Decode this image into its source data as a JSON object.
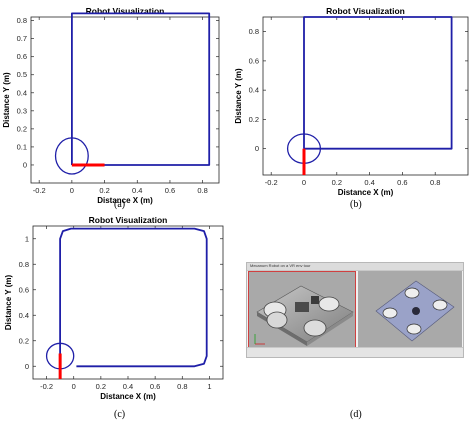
{
  "chart_data": [
    {
      "type": "line",
      "panel_label": "(a)",
      "title": "Robot Visualization",
      "xlabel": "Distance X (m)",
      "ylabel": "Distance Y (m)",
      "xlim": [
        -0.25,
        0.9
      ],
      "ylim": [
        -0.1,
        0.82
      ],
      "xticks": [
        -0.2,
        0,
        0.2,
        0.4,
        0.6,
        0.8
      ],
      "yticks": [
        0,
        0.1,
        0.2,
        0.3,
        0.4,
        0.5,
        0.6,
        0.7,
        0.8
      ],
      "tick_labels_x": [
        "-0.2",
        "0",
        "0.2",
        "0.4",
        "0.6",
        "0.8"
      ],
      "tick_labels_y": [
        "0",
        "0.1",
        "0.2",
        "0.3",
        "0.4",
        "0.5",
        "0.6",
        "0.7",
        "0.8"
      ],
      "series": [
        {
          "values": [
            [
              0,
              0
            ],
            [
              0.84,
              0
            ],
            [
              0.84,
              0.84
            ],
            [
              0,
              0.84
            ],
            [
              0,
              0
            ]
          ],
          "color": "#1f1fa8"
        }
      ],
      "robot": {
        "center": [
          0,
          0.05
        ],
        "radius": 0.1,
        "heading": [
          [
            0,
            0
          ],
          [
            0.2,
            0
          ]
        ],
        "color": "#ff0000"
      }
    },
    {
      "type": "line",
      "panel_label": "(b)",
      "title": "Robot Visualization",
      "xlabel": "Distance X (m)",
      "ylabel": "Distance Y (m)",
      "xlim": [
        -0.25,
        1.0
      ],
      "ylim": [
        -0.18,
        0.9
      ],
      "xticks": [
        -0.2,
        0,
        0.2,
        0.4,
        0.6,
        0.8
      ],
      "yticks": [
        0,
        0.2,
        0.4,
        0.6,
        0.8
      ],
      "tick_labels_x": [
        "-0.2",
        "0",
        "0.2",
        "0.4",
        "0.6",
        "0.8"
      ],
      "tick_labels_y": [
        "0",
        "0.2",
        "0.4",
        "0.6",
        "0.8"
      ],
      "series": [
        {
          "values": [
            [
              0,
              0
            ],
            [
              0.9,
              0
            ],
            [
              0.9,
              0.9
            ],
            [
              0,
              0.9
            ],
            [
              0,
              0
            ]
          ],
          "color": "#1f1fa8"
        }
      ],
      "robot": {
        "center": [
          0,
          0
        ],
        "radius": 0.1,
        "heading": [
          [
            0,
            0
          ],
          [
            0,
            -0.18
          ]
        ],
        "color": "#ff0000"
      }
    },
    {
      "type": "line",
      "panel_label": "(c)",
      "title": "Robot Visualization",
      "xlabel": "Distance X (m)",
      "ylabel": "Distance Y (m)",
      "xlim": [
        -0.3,
        1.1
      ],
      "ylim": [
        -0.1,
        1.1
      ],
      "xticks": [
        -0.2,
        0,
        0.2,
        0.4,
        0.6,
        0.8,
        1
      ],
      "yticks": [
        0,
        0.2,
        0.4,
        0.6,
        0.8,
        1
      ],
      "tick_labels_x": [
        "-0.2",
        "0",
        "0.2",
        "0.4",
        "0.6",
        "0.8",
        "1"
      ],
      "tick_labels_y": [
        "0",
        "0.2",
        "0.4",
        "0.6",
        "0.8",
        "1"
      ],
      "series": [
        {
          "values": [
            [
              0.02,
              0
            ],
            [
              0.89,
              0
            ],
            [
              0.96,
              0.02
            ],
            [
              0.98,
              0.08
            ],
            [
              0.98,
              1.0
            ],
            [
              0.96,
              1.06
            ],
            [
              0.89,
              1.08
            ],
            [
              -0.02,
              1.08
            ],
            [
              -0.08,
              1.06
            ],
            [
              -0.1,
              1.0
            ],
            [
              -0.1,
              0.08
            ]
          ],
          "color": "#1f1fa8"
        }
      ],
      "robot": {
        "center": [
          -0.1,
          0.08
        ],
        "radius": 0.1,
        "heading": [
          [
            -0.1,
            0.1
          ],
          [
            -0.1,
            -0.1
          ]
        ],
        "color": "#ff0000"
      }
    }
  ],
  "panel_d": {
    "label": "(d)",
    "window_title": "Mecanum Robot on a VR env tour"
  }
}
